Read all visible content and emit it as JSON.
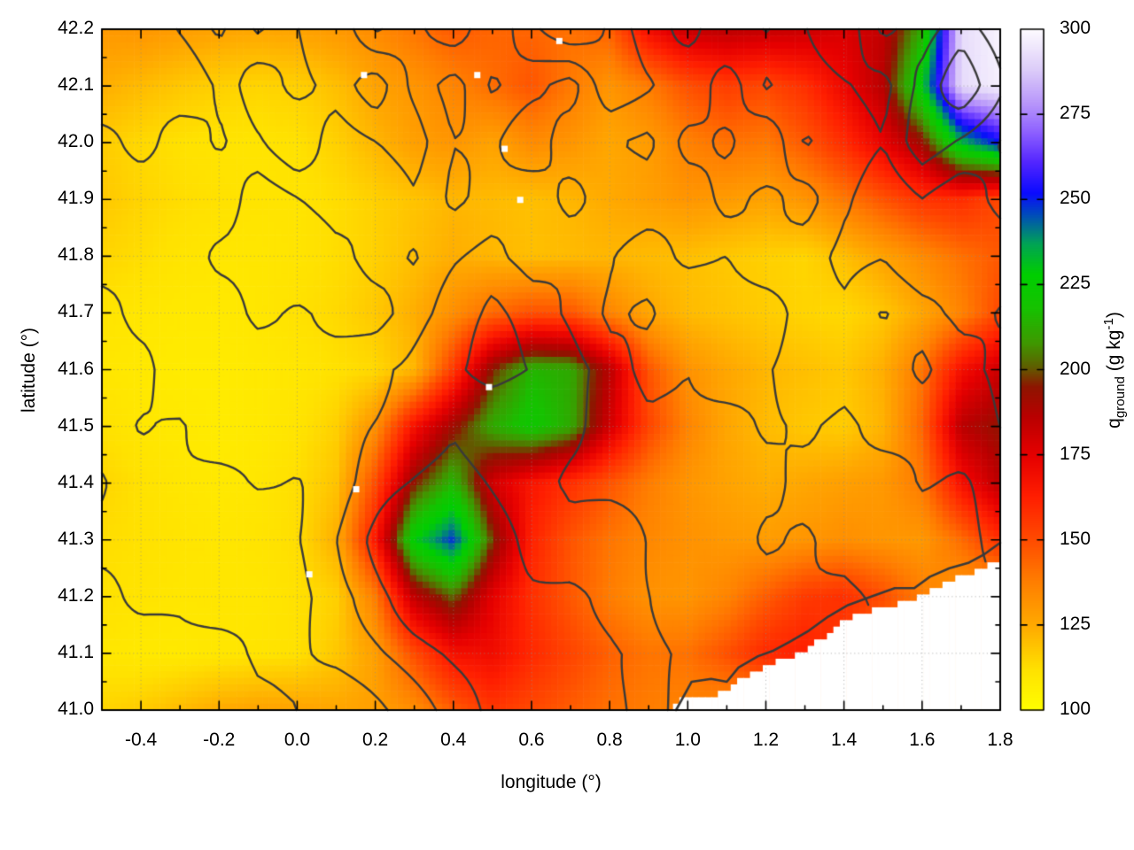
{
  "figure": {
    "background": "#ffffff"
  },
  "chart_data": {
    "type": "heatmap",
    "x_axis": {
      "title": "longitude (°)",
      "min": -0.5,
      "max": 1.8,
      "major_ticks": [
        -0.4,
        -0.2,
        0.0,
        0.2,
        0.4,
        0.6,
        0.8,
        1.0,
        1.2,
        1.4,
        1.6,
        1.8
      ],
      "tick_labels": [
        "-0.4",
        "-0.2",
        "0.0",
        "0.2",
        "0.4",
        "0.6",
        "0.8",
        "1.0",
        "1.2",
        "1.4",
        "1.6",
        "1.8"
      ],
      "minor_step": 0.1
    },
    "y_axis": {
      "title": "latitude (°)",
      "min": 41.0,
      "max": 42.2,
      "major_ticks": [
        41.0,
        41.1,
        41.2,
        41.3,
        41.4,
        41.5,
        41.6,
        41.7,
        41.8,
        41.9,
        42.0,
        42.1,
        42.2
      ],
      "tick_labels": [
        "41.0",
        "41.1",
        "41.2",
        "41.3",
        "41.4",
        "41.5",
        "41.6",
        "41.7",
        "41.8",
        "41.9",
        "42.0",
        "42.1",
        "42.2"
      ],
      "minor_step": 0.05
    },
    "colorbar": {
      "label": {
        "q": "q",
        "sub": "ground",
        "mid": " (g kg",
        "sup": "-1",
        "end": ")"
      },
      "min": 100,
      "max": 300,
      "tick_values": [
        100,
        125,
        150,
        175,
        200,
        225,
        250,
        275,
        300
      ],
      "tick_labels": [
        "100",
        "125",
        "150",
        "175",
        "200",
        "225",
        "250",
        "275",
        "300"
      ],
      "inner_dash_values": [
        125,
        150,
        175,
        200,
        225,
        250,
        275
      ],
      "palette": [
        [
          100,
          "#ffff00"
        ],
        [
          112,
          "#ffe200"
        ],
        [
          125,
          "#ffaa00"
        ],
        [
          138,
          "#ff7e00"
        ],
        [
          150,
          "#ff4c00"
        ],
        [
          163,
          "#ff1e00"
        ],
        [
          175,
          "#e60000"
        ],
        [
          186,
          "#bb0000"
        ],
        [
          195,
          "#8f1500"
        ],
        [
          201,
          "#5f6000"
        ],
        [
          208,
          "#3f9900"
        ],
        [
          218,
          "#17c200"
        ],
        [
          228,
          "#00cf00"
        ],
        [
          237,
          "#00a455"
        ],
        [
          246,
          "#0048c0"
        ],
        [
          252,
          "#0b0bff"
        ],
        [
          261,
          "#5426ff"
        ],
        [
          270,
          "#8f62ff"
        ],
        [
          278,
          "#b795fb"
        ],
        [
          288,
          "#dcccf9"
        ],
        [
          300,
          "#fefcff"
        ]
      ]
    },
    "grid": {
      "lon_start": -0.5,
      "lon_step": 0.1,
      "lat_start": 42.2,
      "lat_step": -0.1,
      "values": [
        [
          130,
          131,
          129,
          127,
          126,
          127,
          130,
          134,
          140,
          147,
          144,
          144,
          141,
          145,
          170,
          183,
          186,
          184,
          182,
          178,
          184,
          212,
          292,
          298
        ],
        [
          124,
          121,
          118,
          116,
          115,
          116,
          120,
          127,
          131,
          136,
          142,
          148,
          139,
          131,
          138,
          149,
          154,
          151,
          158,
          172,
          187,
          230,
          292,
          297
        ],
        [
          117,
          114,
          112,
          111,
          111,
          112,
          116,
          122,
          128,
          131,
          127,
          134,
          131,
          126,
          129,
          137,
          141,
          139,
          147,
          159,
          174,
          192,
          234,
          252
        ],
        [
          118,
          115,
          113,
          112,
          111,
          111,
          113,
          116,
          119,
          122,
          121,
          120,
          122,
          125,
          128,
          131,
          129,
          127,
          131,
          139,
          148,
          157,
          159,
          151
        ],
        [
          115,
          113,
          111,
          110,
          110,
          111,
          113,
          116,
          120,
          124,
          122,
          120,
          121,
          122,
          121,
          120,
          118,
          116,
          115,
          120,
          127,
          134,
          141,
          147
        ],
        [
          111,
          110,
          109,
          109,
          110,
          112,
          114,
          118,
          124,
          133,
          143,
          149,
          148,
          136,
          126,
          121,
          119,
          117,
          115,
          114,
          118,
          126,
          136,
          151
        ],
        [
          110,
          109,
          108,
          108,
          109,
          110,
          112,
          114,
          122,
          155,
          196,
          215,
          212,
          186,
          148,
          132,
          126,
          122,
          120,
          118,
          124,
          140,
          168,
          182
        ],
        [
          112,
          110,
          109,
          108,
          109,
          111,
          116,
          132,
          168,
          192,
          212,
          222,
          212,
          180,
          152,
          136,
          126,
          121,
          118,
          117,
          123,
          144,
          186,
          194
        ],
        [
          115,
          112,
          110,
          109,
          110,
          113,
          119,
          150,
          195,
          215,
          180,
          166,
          158,
          148,
          138,
          131,
          127,
          124,
          126,
          128,
          130,
          139,
          168,
          186
        ],
        [
          113,
          112,
          111,
          110,
          111,
          113,
          124,
          165,
          228,
          248,
          198,
          162,
          148,
          140,
          135,
          132,
          130,
          129,
          131,
          133,
          131,
          130,
          142,
          158
        ],
        [
          112,
          111,
          110,
          110,
          110,
          112,
          116,
          138,
          185,
          202,
          175,
          158,
          147,
          138,
          132,
          131,
          136,
          146,
          155,
          158,
          150,
          138,
          130,
          126
        ],
        [
          110,
          109,
          109,
          110,
          111,
          112,
          118,
          128,
          150,
          168,
          170,
          160,
          152,
          145,
          140,
          141,
          149,
          160,
          163,
          155,
          140,
          130,
          124,
          120
        ],
        [
          115,
          117,
          121,
          125,
          127,
          127,
          126,
          128,
          133,
          146,
          156,
          151,
          146,
          141,
          138,
          136,
          134,
          132,
          130,
          128,
          126,
          124,
          122,
          120
        ]
      ]
    },
    "contour_field": {
      "levels": [
        1.25,
        2.0,
        2.75
      ],
      "values": [
        [
          1.2,
          0.8,
          1.6,
          2.2,
          1.0,
          1.8,
          2.6,
          1.2,
          2.0,
          2.6,
          1.4,
          2.3,
          3.0,
          2.2,
          1.2,
          2.4,
          1.6,
          2.6,
          1.8,
          1.0,
          2.2,
          1.4,
          2.1,
          1.2
        ],
        [
          0.7,
          1.8,
          1.0,
          1.5,
          2.4,
          1.2,
          1.8,
          2.8,
          1.6,
          1.0,
          2.4,
          1.8,
          1.0,
          2.6,
          2.0,
          1.2,
          2.6,
          1.4,
          2.2,
          1.6,
          1.0,
          2.0,
          2.8,
          1.6
        ],
        [
          1.6,
          0.8,
          2.0,
          1.2,
          1.8,
          2.6,
          1.0,
          1.6,
          2.2,
          1.4,
          1.8,
          1.2,
          2.4,
          1.6,
          1.0,
          2.0,
          1.4,
          2.4,
          1.0,
          1.8,
          1.4,
          2.6,
          1.8,
          1.0
        ],
        [
          0.9,
          1.6,
          1.2,
          2.2,
          1.0,
          1.5,
          2.0,
          1.2,
          1.8,
          1.0,
          1.6,
          2.2,
          1.2,
          2.0,
          1.6,
          1.0,
          1.8,
          1.2,
          2.0,
          1.4,
          1.0,
          1.7,
          1.2,
          1.8
        ],
        [
          1.4,
          1.0,
          1.8,
          1.2,
          1.6,
          1.0,
          1.4,
          1.8,
          1.0,
          1.5,
          1.8,
          1.2,
          1.8,
          1.4,
          1.0,
          1.6,
          1.2,
          1.8,
          1.4,
          1.0,
          1.4,
          1.0,
          1.6,
          1.2
        ],
        [
          1.0,
          1.6,
          1.2,
          1.8,
          1.0,
          1.6,
          1.2,
          1.0,
          1.6,
          2.0,
          2.4,
          2.0,
          1.6,
          1.2,
          1.8,
          1.0,
          1.4,
          1.0,
          1.6,
          1.2,
          1.8,
          1.4,
          1.0,
          1.4
        ],
        [
          1.5,
          1.0,
          1.6,
          1.0,
          1.4,
          1.0,
          1.5,
          2.0,
          2.4,
          2.8,
          3.0,
          2.6,
          2.2,
          1.6,
          1.2,
          1.6,
          1.0,
          1.4,
          1.8,
          1.2,
          1.0,
          1.6,
          1.2,
          1.0
        ],
        [
          1.0,
          1.4,
          1.0,
          1.5,
          1.0,
          1.3,
          1.7,
          2.2,
          2.8,
          3.2,
          2.8,
          2.4,
          2.0,
          1.5,
          1.1,
          1.3,
          1.7,
          1.2,
          1.5,
          1.0,
          1.4,
          1.1,
          1.5,
          1.2
        ],
        [
          1.3,
          1.0,
          1.5,
          1.1,
          1.4,
          1.1,
          1.5,
          2.4,
          3.0,
          3.6,
          3.0,
          2.4,
          1.8,
          1.3,
          1.0,
          1.5,
          1.1,
          1.6,
          1.3,
          1.7,
          1.2,
          1.5,
          1.1,
          1.4
        ],
        [
          1.0,
          1.5,
          1.1,
          1.4,
          1.0,
          1.3,
          1.8,
          2.6,
          3.4,
          3.8,
          3.2,
          2.6,
          2.2,
          2.6,
          1.8,
          1.2,
          1.6,
          1.1,
          1.7,
          1.3,
          1.0,
          1.3,
          1.0,
          1.2
        ],
        [
          1.4,
          1.0,
          1.3,
          1.0,
          1.4,
          1.1,
          1.5,
          2.0,
          2.8,
          3.2,
          2.8,
          3.0,
          3.4,
          3.0,
          2.4,
          1.6,
          1.2,
          1.6,
          1.1,
          1.5,
          1.1,
          1.0,
          1.0,
          1.0
        ],
        [
          1.0,
          1.3,
          1.0,
          1.4,
          1.1,
          1.3,
          1.6,
          1.9,
          2.3,
          2.7,
          3.0,
          3.4,
          3.8,
          3.4,
          2.8,
          2.0,
          1.4,
          1.0,
          1.2,
          1.1,
          1.0,
          1.0,
          1.0,
          1.0
        ],
        [
          1.2,
          1.0,
          1.4,
          1.1,
          1.3,
          1.5,
          1.2,
          1.6,
          2.0,
          2.4,
          2.8,
          3.2,
          3.6,
          3.0,
          2.4,
          1.8,
          1.2,
          1.0,
          1.0,
          1.0,
          1.0,
          1.0,
          1.0,
          1.0
        ]
      ]
    },
    "sea_edge": [
      [
        0.95,
        41.0
      ],
      [
        1.0,
        41.025
      ],
      [
        1.07,
        41.02
      ],
      [
        1.12,
        41.05
      ],
      [
        1.18,
        41.07
      ],
      [
        1.25,
        41.09
      ],
      [
        1.32,
        41.115
      ],
      [
        1.4,
        41.155
      ],
      [
        1.48,
        41.18
      ],
      [
        1.56,
        41.19
      ],
      [
        1.63,
        41.215
      ],
      [
        1.7,
        41.235
      ],
      [
        1.76,
        41.25
      ],
      [
        1.8,
        41.27
      ]
    ],
    "coastline": [
      [
        0.97,
        41.0
      ],
      [
        1.01,
        41.05
      ],
      [
        1.06,
        41.055
      ],
      [
        1.1,
        41.05
      ],
      [
        1.13,
        41.075
      ],
      [
        1.18,
        41.095
      ],
      [
        1.22,
        41.105
      ],
      [
        1.26,
        41.12
      ],
      [
        1.31,
        41.14
      ],
      [
        1.36,
        41.165
      ],
      [
        1.41,
        41.185
      ],
      [
        1.47,
        41.2
      ],
      [
        1.53,
        41.215
      ],
      [
        1.58,
        41.215
      ],
      [
        1.62,
        41.235
      ],
      [
        1.67,
        41.25
      ],
      [
        1.72,
        41.26
      ],
      [
        1.76,
        41.275
      ],
      [
        1.8,
        41.295
      ]
    ],
    "specks": [
      [
        0.17,
        42.12
      ],
      [
        0.46,
        42.12
      ],
      [
        0.67,
        42.18
      ],
      [
        0.53,
        41.99
      ],
      [
        0.57,
        41.9
      ],
      [
        0.03,
        41.24
      ],
      [
        0.15,
        41.39
      ],
      [
        0.49,
        41.57
      ]
    ],
    "style": {
      "contour_color": "#3a3a3a",
      "grid_color": "rgba(140,140,140,0.6)",
      "border_color": "#000000",
      "sea_color": "#ffffff"
    }
  }
}
